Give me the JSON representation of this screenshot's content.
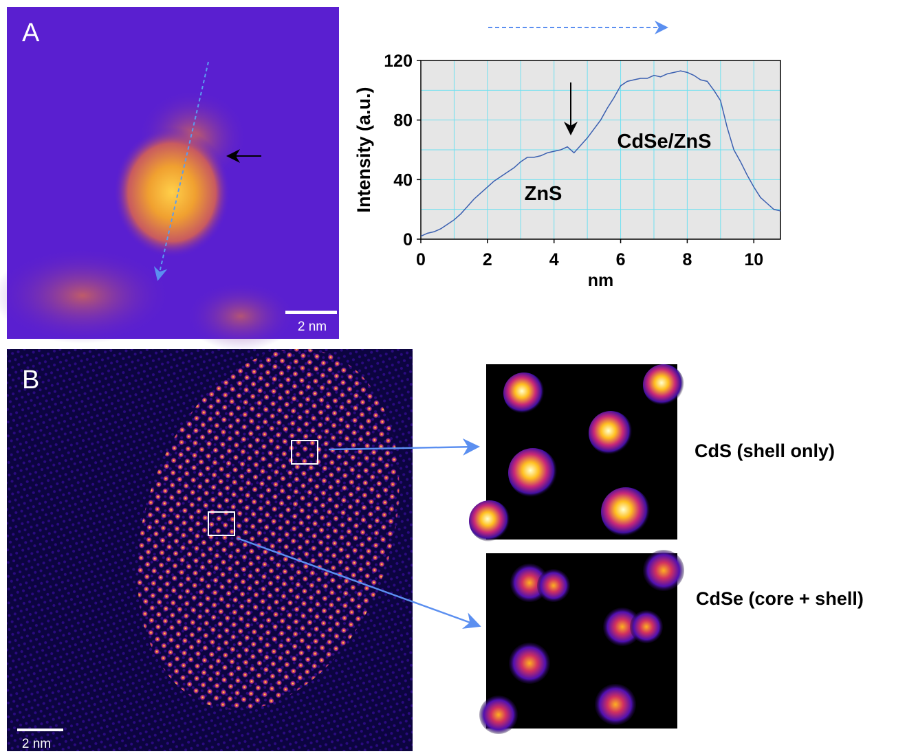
{
  "chart_data": {
    "type": "line",
    "x_label": "nm",
    "y_label": "Intensity (a.u.)",
    "annotations": [
      "ZnS",
      "CdSe/ZnS"
    ],
    "x": [
      0,
      0.2,
      0.4,
      0.6,
      0.8,
      1.0,
      1.2,
      1.4,
      1.6,
      1.8,
      2.0,
      2.2,
      2.4,
      2.6,
      2.8,
      3.0,
      3.2,
      3.4,
      3.6,
      3.8,
      4.0,
      4.2,
      4.4,
      4.6,
      4.8,
      5.0,
      5.2,
      5.4,
      5.6,
      5.8,
      6.0,
      6.2,
      6.4,
      6.6,
      6.8,
      7.0,
      7.2,
      7.4,
      7.6,
      7.8,
      8.0,
      8.2,
      8.4,
      8.6,
      8.8,
      9.0,
      9.2,
      9.4,
      9.6,
      9.8,
      10.0,
      10.2,
      10.4,
      10.6,
      10.8
    ],
    "series": [
      {
        "color": "#3a5fb0",
        "values": [
          2,
          4,
          5,
          7,
          10,
          13,
          17,
          22,
          27,
          31,
          35,
          39,
          42,
          45,
          48,
          52,
          55,
          55,
          56,
          58,
          59,
          60,
          62,
          58,
          63,
          68,
          74,
          80,
          88,
          95,
          103,
          106,
          107,
          108,
          108,
          110,
          109,
          111,
          112,
          113,
          112,
          110,
          107,
          106,
          100,
          93,
          75,
          60,
          52,
          43,
          35,
          28,
          24,
          20,
          19
        ]
      }
    ],
    "xlim": [
      0,
      10.8
    ],
    "xticks": [
      0,
      2,
      4,
      6,
      8,
      10
    ],
    "ylim": [
      0,
      120
    ],
    "yticks": [
      0,
      40,
      80,
      120
    ],
    "grid": true
  },
  "panels": {
    "a": {
      "label": "A",
      "scale_bar": "2 nm"
    },
    "b": {
      "label": "B",
      "scale_bar": "2 nm",
      "inset_top": "CdS (shell only)",
      "inset_bottom": "CdSe (core + shell)"
    }
  }
}
